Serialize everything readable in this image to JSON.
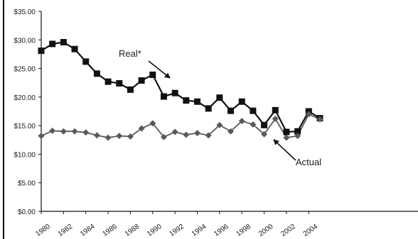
{
  "chart_data": {
    "type": "line",
    "title": "",
    "xlabel": "",
    "ylabel": "",
    "x_categories": [
      1980,
      1981,
      1982,
      1983,
      1984,
      1985,
      1986,
      1987,
      1988,
      1989,
      1990,
      1991,
      1992,
      1993,
      1994,
      1995,
      1996,
      1997,
      1998,
      1999,
      2000,
      2001,
      2002,
      2003,
      2004,
      2005
    ],
    "x_tick_labels": [
      "1980",
      "1982",
      "1984",
      "1986",
      "1988",
      "1990",
      "1992",
      "1994",
      "1996",
      "1998",
      "2000",
      "2002",
      "2004"
    ],
    "y_tick_labels": [
      "$0.00",
      "$5.00",
      "$10.00",
      "$15.00",
      "$20.00",
      "$25.00",
      "$30.00",
      "$35.00"
    ],
    "ylim": [
      0,
      35
    ],
    "grid": false,
    "legend": "none",
    "series": [
      {
        "name": "Real*",
        "marker": "square",
        "color": "#111111",
        "values": [
          28.1,
          29.3,
          29.6,
          28.4,
          26.2,
          24.1,
          22.7,
          22.4,
          21.3,
          22.9,
          23.9,
          20.1,
          20.7,
          19.4,
          19.2,
          18.0,
          19.9,
          17.6,
          19.2,
          17.6,
          15.1,
          17.7,
          13.9,
          14.0,
          17.5,
          16.3
        ]
      },
      {
        "name": "Actual",
        "marker": "diamond",
        "color": "#5a5a5a",
        "values": [
          13.2,
          14.1,
          14.0,
          14.0,
          13.8,
          13.3,
          12.9,
          13.2,
          13.1,
          14.5,
          15.4,
          13.0,
          13.9,
          13.4,
          13.7,
          13.3,
          15.1,
          14.0,
          15.8,
          15.2,
          13.5,
          16.2,
          12.9,
          13.2,
          17.0,
          16.1
        ]
      }
    ],
    "annotations": [
      {
        "text": "Real*",
        "points_to": "Real*"
      },
      {
        "text": "Actual",
        "points_to": "Actual"
      }
    ]
  }
}
